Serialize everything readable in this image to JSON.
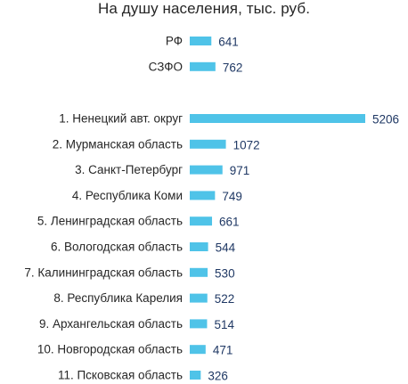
{
  "chart_data": {
    "type": "bar",
    "orientation": "horizontal",
    "title": "На душу населения, тыс. руб.",
    "bar_color": "#4fc3e8",
    "value_label_color": "#1f3864",
    "groups": [
      {
        "categories": [
          "РФ",
          "СЗФО"
        ],
        "values": [
          641,
          762
        ]
      },
      {
        "categories": [
          "1. Ненецкий авт. округ",
          "2. Мурманская область",
          "3. Санкт-Петербург",
          "4. Республика Коми",
          "5. Ленинградская область",
          "6. Вологодская область",
          "7. Калининградская область",
          "8. Республика Карелия",
          "9. Архангельская область",
          "10. Новгородская область",
          "11. Псковская область"
        ],
        "values": [
          5206,
          1072,
          971,
          749,
          661,
          544,
          530,
          522,
          514,
          471,
          326
        ]
      }
    ],
    "xlim": [
      0,
      5206
    ],
    "grid": false,
    "legend": "none"
  }
}
